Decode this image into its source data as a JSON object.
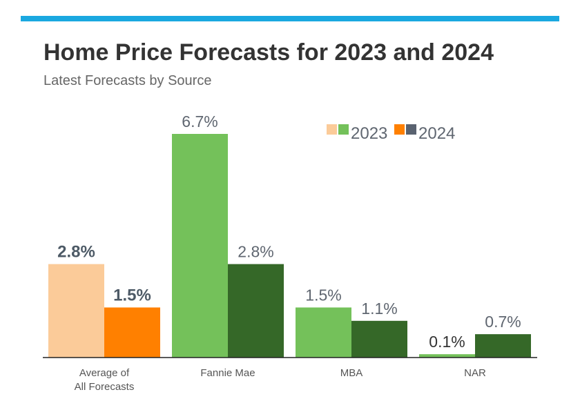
{
  "colors": {
    "accent_bar": "#1aa8e0",
    "avg_2023": "#fbcb99",
    "avg_2024": "#ff8000",
    "src_2023": "#74c15a",
    "src_2024": "#356828",
    "text_dark": "#333333",
    "text_gray": "#5f6670",
    "axis": "#222222"
  },
  "chart_data": {
    "type": "bar",
    "title": "Home Price Forecasts for 2023 and 2024",
    "subtitle": "Latest Forecasts by Source",
    "categories": [
      "Average of\nAll Forecasts",
      "Fannie Mae",
      "MBA",
      "NAR"
    ],
    "series": [
      {
        "name": "2023",
        "values": [
          2.8,
          6.7,
          1.5,
          0.1
        ],
        "labels": [
          "2.8%",
          "6.7%",
          "1.5%",
          "0.1%"
        ]
      },
      {
        "name": "2024",
        "values": [
          1.5,
          2.8,
          1.1,
          0.7
        ],
        "labels": [
          "1.5%",
          "2.8%",
          "1.1%",
          "0.7%"
        ]
      }
    ],
    "legend": {
      "position": "top-right",
      "items": [
        {
          "label": "2023",
          "swatches": [
            "#fbcb99",
            "#74c15a"
          ]
        },
        {
          "label": "2024",
          "swatches": [
            "#ff8000",
            "#596270"
          ]
        }
      ]
    },
    "ylim": [
      0,
      6.7
    ],
    "grid": false
  }
}
